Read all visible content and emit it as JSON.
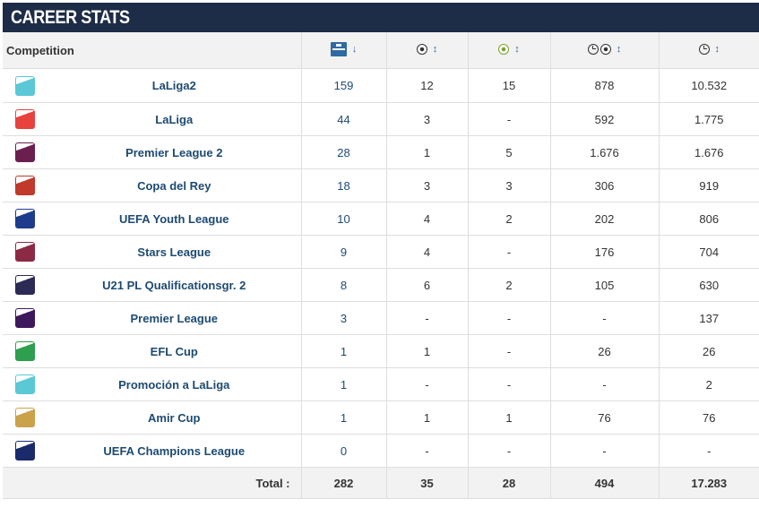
{
  "header": {
    "title": "CAREER STATS"
  },
  "table": {
    "competition_header": "Competition",
    "columns": [
      {
        "icon": "pitch-appearances-icon",
        "sort": "↓"
      },
      {
        "icon": "ball-goals-icon",
        "sort": "↕"
      },
      {
        "icon": "ball-assists-icon",
        "sort": "↕"
      },
      {
        "icon": "clock-ball-minutes-per-goal-icon",
        "sort": "↕"
      },
      {
        "icon": "clock-minutes-played-icon",
        "sort": "↕"
      }
    ],
    "rows": [
      {
        "logo": "laliga2-logo",
        "logo_color": "#5bc8d6",
        "competition": "LaLiga2",
        "apps": "159",
        "goals": "12",
        "assists": "15",
        "min_per_goal": "878",
        "minutes": "10.532"
      },
      {
        "logo": "laliga-logo",
        "logo_color": "#e8423f",
        "competition": "LaLiga",
        "apps": "44",
        "goals": "3",
        "assists": "-",
        "min_per_goal": "592",
        "minutes": "1.775"
      },
      {
        "logo": "premier-league-2-logo",
        "logo_color": "#6b1f4f",
        "competition": "Premier League 2",
        "apps": "28",
        "goals": "1",
        "assists": "5",
        "min_per_goal": "1.676",
        "minutes": "1.676"
      },
      {
        "logo": "copa-del-rey-logo",
        "logo_color": "#c0392b",
        "competition": "Copa del Rey",
        "apps": "18",
        "goals": "3",
        "assists": "3",
        "min_per_goal": "306",
        "minutes": "919"
      },
      {
        "logo": "uefa-youth-league-logo",
        "logo_color": "#1f3c8c",
        "competition": "UEFA Youth League",
        "apps": "10",
        "goals": "4",
        "assists": "2",
        "min_per_goal": "202",
        "minutes": "806"
      },
      {
        "logo": "stars-league-logo",
        "logo_color": "#8c2a45",
        "competition": "Stars League",
        "apps": "9",
        "goals": "4",
        "assists": "-",
        "min_per_goal": "176",
        "minutes": "704"
      },
      {
        "logo": "u21-pl-qualification-logo",
        "logo_color": "#2b2b55",
        "competition": "U21 PL Qualificationsgr. 2",
        "apps": "8",
        "goals": "6",
        "assists": "2",
        "min_per_goal": "105",
        "minutes": "630"
      },
      {
        "logo": "premier-league-logo",
        "logo_color": "#3d195b",
        "competition": "Premier League",
        "apps": "3",
        "goals": "-",
        "assists": "-",
        "min_per_goal": "-",
        "minutes": "137"
      },
      {
        "logo": "efl-cup-logo",
        "logo_color": "#2e9e4f",
        "competition": "EFL Cup",
        "apps": "1",
        "goals": "1",
        "assists": "-",
        "min_per_goal": "26",
        "minutes": "26"
      },
      {
        "logo": "promocion-laliga-logo",
        "logo_color": "#5bc8d6",
        "competition": "Promoción a LaLiga",
        "apps": "1",
        "goals": "-",
        "assists": "-",
        "min_per_goal": "-",
        "minutes": "2"
      },
      {
        "logo": "amir-cup-logo",
        "logo_color": "#c9a24a",
        "competition": "Amir Cup",
        "apps": "1",
        "goals": "1",
        "assists": "1",
        "min_per_goal": "76",
        "minutes": "76"
      },
      {
        "logo": "uefa-champions-league-logo",
        "logo_color": "#1b2a6b",
        "competition": "UEFA Champions League",
        "apps": "0",
        "goals": "-",
        "assists": "-",
        "min_per_goal": "-",
        "minutes": "-"
      }
    ],
    "totals": {
      "label": "Total :",
      "apps": "282",
      "goals": "35",
      "assists": "28",
      "min_per_goal": "494",
      "minutes": "17.283"
    }
  }
}
